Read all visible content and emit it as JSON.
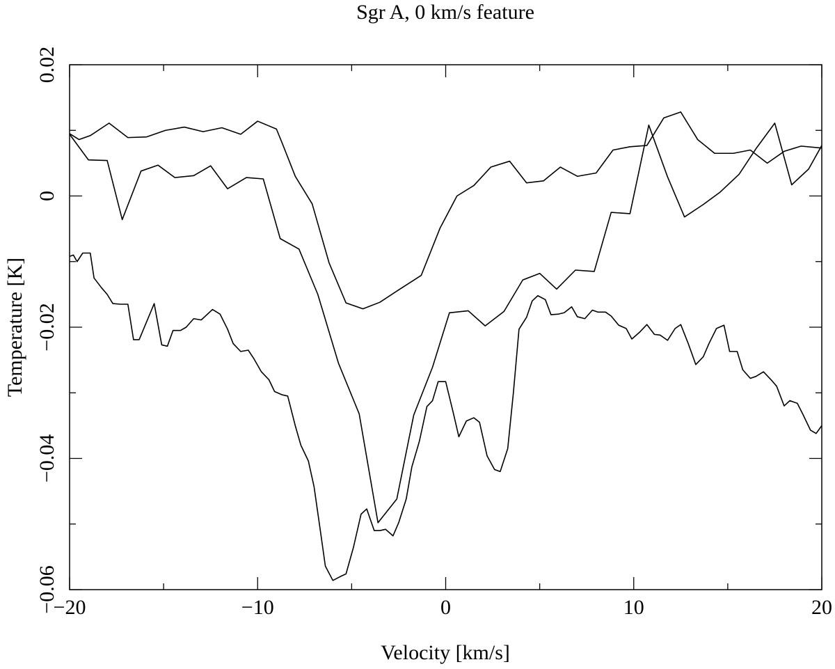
{
  "chart_data": {
    "type": "line",
    "title": "Sgr A, 0 km/s feature",
    "xlabel": "Velocity [km/s]",
    "ylabel": "Temperature [K]",
    "xlim": [
      -20,
      20
    ],
    "ylim": [
      -0.06,
      0.02
    ],
    "xticks": [
      {
        "value": -20,
        "label": "−20"
      },
      {
        "value": -10,
        "label": "−10"
      },
      0,
      10,
      20
    ],
    "yticks": [
      {
        "value": -0.06,
        "label": "−0.06"
      },
      {
        "value": -0.04,
        "label": "−0.04"
      },
      {
        "value": -0.02,
        "label": "−0.02"
      },
      0,
      0.02
    ],
    "xminor_ticks": [
      -15,
      -5,
      5,
      15
    ],
    "yminor_ticks": [
      -0.05,
      -0.03,
      -0.01,
      0.01
    ],
    "series": [
      {
        "color": "#000000",
        "x": [
          -20,
          -19.5,
          -18.9,
          -17.9,
          -16.9,
          -15.9,
          -14.9,
          -13.9,
          -12.9,
          -11.9,
          -10.9,
          -10.0,
          -9.0,
          -8.7,
          -8.0,
          -7.1,
          -6.2,
          -5.3,
          -4.4,
          -3.5,
          -2.6,
          -1.3,
          -0.3,
          0.6,
          1.5,
          2.4,
          3.4,
          4.3,
          5.2,
          6.1,
          7.0,
          8.0,
          8.9,
          9.8,
          10.7,
          11.6,
          12.5,
          13.4,
          14.3,
          15.3,
          16.2,
          17.1,
          18.0,
          18.9,
          20.0
        ],
        "values": [
          0.0095,
          0.0086,
          0.0092,
          0.0111,
          0.0089,
          0.009,
          0.01,
          0.0105,
          0.0098,
          0.0104,
          0.0094,
          0.0114,
          0.0102,
          0.0081,
          0.003,
          -0.0012,
          -0.0102,
          -0.0163,
          -0.0172,
          -0.0162,
          -0.0145,
          -0.0121,
          -0.0049,
          0.0,
          0.0016,
          0.0044,
          0.0053,
          0.002,
          0.0023,
          0.0044,
          0.003,
          0.0035,
          0.007,
          0.0075,
          0.0077,
          0.0119,
          0.0128,
          0.0086,
          0.0065,
          0.0065,
          0.007,
          0.005,
          0.0068,
          0.0076,
          0.0073
        ]
      },
      {
        "color": "#000000",
        "x": [
          -20,
          -19.0,
          -18.0,
          -17.2,
          -16.2,
          -15.3,
          -14.4,
          -13.4,
          -12.5,
          -11.6,
          -10.6,
          -9.7,
          -8.8,
          -7.8,
          -6.8,
          -5.7,
          -4.6,
          -3.6,
          -2.6,
          -1.7,
          -0.7,
          0.2,
          1.2,
          2.1,
          3.1,
          4.1,
          5.0,
          5.9,
          6.9,
          7.9,
          8.8,
          9.8,
          10.8,
          11.8,
          12.7,
          13.7,
          14.6,
          15.6,
          16.5,
          17.5,
          18.4,
          19.3,
          20.0
        ],
        "values": [
          0.0094,
          0.0055,
          0.0054,
          -0.0036,
          0.0038,
          0.0047,
          0.0028,
          0.0031,
          0.0046,
          0.0011,
          0.0028,
          0.0026,
          -0.0065,
          -0.0081,
          -0.015,
          -0.0255,
          -0.0332,
          -0.0498,
          -0.0462,
          -0.0334,
          -0.0261,
          -0.0178,
          -0.0175,
          -0.0198,
          -0.0176,
          -0.0128,
          -0.0118,
          -0.0142,
          -0.0113,
          -0.0115,
          -0.0025,
          -0.0027,
          0.0108,
          0.0029,
          -0.0032,
          -0.0013,
          0.0006,
          0.0033,
          0.0072,
          0.0111,
          0.0017,
          0.0041,
          0.0077
        ]
      },
      {
        "color": "#000000",
        "x": [
          -20.0,
          -19.8,
          -19.6,
          -19.3,
          -18.9,
          -18.7,
          -18.3,
          -18.0,
          -17.7,
          -17.3,
          -16.9,
          -16.6,
          -16.3,
          -15.5,
          -15.1,
          -14.8,
          -14.5,
          -14.1,
          -13.8,
          -13.4,
          -13.0,
          -12.4,
          -12.0,
          -11.6,
          -11.3,
          -10.9,
          -10.5,
          -10.2,
          -9.8,
          -9.4,
          -9.1,
          -8.7,
          -8.4,
          -8.0,
          -7.7,
          -7.3,
          -7.0,
          -6.7,
          -6.4,
          -6.0,
          -5.6,
          -5.3,
          -4.9,
          -4.5,
          -4.2,
          -3.8,
          -3.5,
          -3.2,
          -2.8,
          -2.5,
          -2.1,
          -1.8,
          -1.4,
          -1.0,
          -0.7,
          -0.4,
          0.0,
          0.4,
          0.7,
          1.1,
          1.5,
          1.8,
          2.2,
          2.6,
          2.9,
          3.3,
          3.6,
          3.9,
          4.3,
          4.6,
          4.9,
          5.3,
          5.6,
          6.0,
          6.3,
          6.7,
          7.0,
          7.4,
          7.8,
          8.1,
          8.5,
          8.8,
          9.2,
          9.6,
          9.9,
          10.3,
          10.7,
          11.1,
          11.4,
          11.8,
          12.2,
          12.5,
          12.9,
          13.3,
          13.7,
          14.0,
          14.4,
          14.8,
          15.1,
          15.5,
          15.8,
          16.2,
          16.5,
          16.9,
          17.3,
          17.6,
          18.0,
          18.3,
          18.7,
          19.0,
          19.4,
          19.7,
          20.0
        ],
        "values": [
          -0.0092,
          -0.009,
          -0.01,
          -0.0087,
          -0.0087,
          -0.0125,
          -0.014,
          -0.015,
          -0.0164,
          -0.0165,
          -0.0165,
          -0.0219,
          -0.0219,
          -0.0164,
          -0.0227,
          -0.0229,
          -0.0205,
          -0.0205,
          -0.02,
          -0.0187,
          -0.0189,
          -0.0173,
          -0.018,
          -0.0203,
          -0.0225,
          -0.0237,
          -0.0235,
          -0.0248,
          -0.0268,
          -0.028,
          -0.0298,
          -0.0303,
          -0.0305,
          -0.035,
          -0.038,
          -0.0404,
          -0.0443,
          -0.0503,
          -0.0564,
          -0.0586,
          -0.058,
          -0.0576,
          -0.0535,
          -0.0485,
          -0.0477,
          -0.051,
          -0.051,
          -0.0508,
          -0.0518,
          -0.0498,
          -0.0462,
          -0.0413,
          -0.0374,
          -0.0321,
          -0.0312,
          -0.0283,
          -0.0283,
          -0.033,
          -0.0367,
          -0.0343,
          -0.0338,
          -0.0345,
          -0.0396,
          -0.0417,
          -0.042,
          -0.0385,
          -0.03,
          -0.0203,
          -0.0185,
          -0.016,
          -0.0152,
          -0.0158,
          -0.0181,
          -0.018,
          -0.0178,
          -0.0169,
          -0.0184,
          -0.0187,
          -0.0174,
          -0.0177,
          -0.0177,
          -0.0183,
          -0.0197,
          -0.0202,
          -0.0218,
          -0.0208,
          -0.0196,
          -0.0211,
          -0.0212,
          -0.022,
          -0.0202,
          -0.0196,
          -0.0225,
          -0.0257,
          -0.0245,
          -0.0225,
          -0.0202,
          -0.0197,
          -0.0237,
          -0.0237,
          -0.0265,
          -0.0278,
          -0.0275,
          -0.0268,
          -0.028,
          -0.029,
          -0.032,
          -0.0312,
          -0.0316,
          -0.0333,
          -0.0357,
          -0.0362,
          -0.035
        ]
      }
    ]
  }
}
